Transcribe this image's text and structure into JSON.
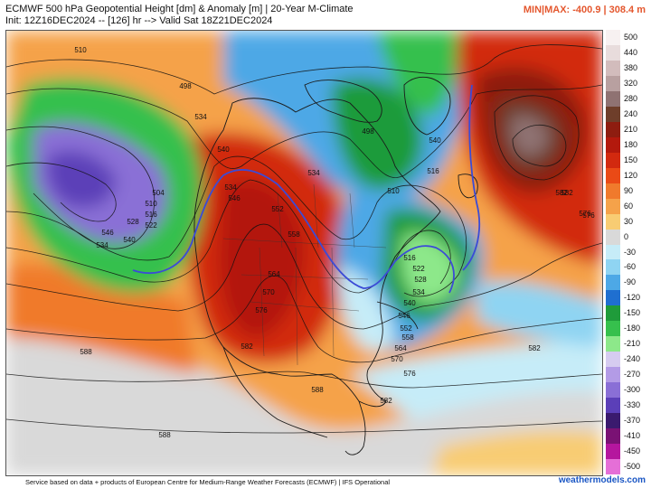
{
  "header": {
    "title": "ECMWF 500 hPa Geopotential Height [dm] & Anomaly [m] | 20-Year M-Climate",
    "init": "Init: 12Z16DEC2024 -- [126] hr --> Valid Sat 18Z21DEC2024",
    "minmax": "MIN|MAX: -400.9 | 308.4 m"
  },
  "legend": {
    "entries": [
      {
        "label": "500",
        "color": "#f7f1f1"
      },
      {
        "label": "440",
        "color": "#e8dcdc"
      },
      {
        "label": "380",
        "color": "#d2bcbc"
      },
      {
        "label": "320",
        "color": "#b8a0a0"
      },
      {
        "label": "280",
        "color": "#8f7272"
      },
      {
        "label": "240",
        "color": "#6e3e2a"
      },
      {
        "label": "210",
        "color": "#8e1d10"
      },
      {
        "label": "180",
        "color": "#b3190d"
      },
      {
        "label": "150",
        "color": "#d2290f"
      },
      {
        "label": "120",
        "color": "#ea4a16"
      },
      {
        "label": "90",
        "color": "#f07a2c"
      },
      {
        "label": "60",
        "color": "#f5a24a"
      },
      {
        "label": "30",
        "color": "#f8cc73"
      },
      {
        "label": "0",
        "color": "#d9d9d9"
      },
      {
        "label": "-30",
        "color": "#c6ecf8"
      },
      {
        "label": "-60",
        "color": "#8fd4f2"
      },
      {
        "label": "-90",
        "color": "#4da8e6"
      },
      {
        "label": "-120",
        "color": "#1f6fd0"
      },
      {
        "label": "-150",
        "color": "#1f9b3a"
      },
      {
        "label": "-180",
        "color": "#36c04d"
      },
      {
        "label": "-210",
        "color": "#8de88a"
      },
      {
        "label": "-240",
        "color": "#d6ccf0"
      },
      {
        "label": "-270",
        "color": "#b39be6"
      },
      {
        "label": "-300",
        "color": "#8a6fd6"
      },
      {
        "label": "-330",
        "color": "#5b3fb8"
      },
      {
        "label": "-370",
        "color": "#3a1a6e"
      },
      {
        "label": "-410",
        "color": "#7a1274"
      },
      {
        "label": "-450",
        "color": "#b5169e"
      },
      {
        "label": "-500",
        "color": "#e56fd7"
      }
    ]
  },
  "map": {
    "region": "North America / North Pacific / North Atlantic",
    "trough_color": "#7a1a7a",
    "ridge_color": "#d2290f",
    "contour_labels": [
      "510",
      "498",
      "504",
      "510",
      "516",
      "522",
      "528",
      "534",
      "540",
      "546",
      "534",
      "540",
      "546",
      "552",
      "558",
      "564",
      "570",
      "576",
      "582",
      "552",
      "558",
      "564",
      "570",
      "576",
      "582",
      "588",
      "588",
      "588",
      "582",
      "582",
      "576",
      "588",
      "588",
      "516",
      "522",
      "528",
      "534",
      "540",
      "546",
      "510",
      "516",
      "582",
      "576",
      "498",
      "534",
      "534",
      "540"
    ]
  },
  "footer": {
    "credit": "Service based on data + products of European Centre for Medium-Range Weather Forecasts (ECMWF) | IFS Operational",
    "brand": "weathermodels.com"
  }
}
